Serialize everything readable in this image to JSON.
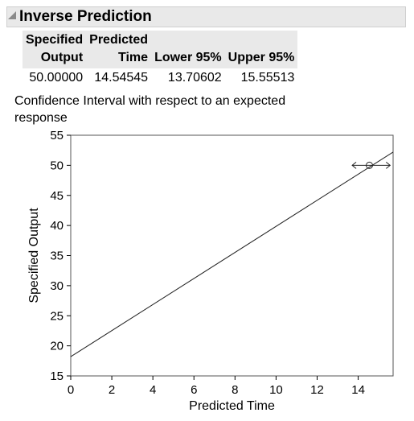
{
  "section": {
    "title": "Inverse Prediction"
  },
  "table": {
    "headers": [
      {
        "line1": "Specified",
        "line2": "Output"
      },
      {
        "line1": "Predicted",
        "line2": "Time"
      },
      {
        "line1": "",
        "line2": "Lower 95%"
      },
      {
        "line1": "",
        "line2": "Upper 95%"
      }
    ],
    "row": [
      "50.00000",
      "14.54545",
      "13.70602",
      "15.55513"
    ]
  },
  "caption": "Confidence Interval with respect to an expected response",
  "chart_data": {
    "type": "line",
    "xlabel": "Predicted Time",
    "ylabel": "Specified Output",
    "xlim": [
      0,
      15.7
    ],
    "ylim": [
      15,
      55
    ],
    "xticks": [
      0,
      2,
      4,
      6,
      8,
      10,
      12,
      14
    ],
    "yticks": [
      15,
      20,
      25,
      30,
      35,
      40,
      45,
      50,
      55
    ],
    "grid": false,
    "series": [
      {
        "x": [
          0,
          15.7
        ],
        "y": [
          18.2,
          52.2
        ]
      }
    ],
    "point": {
      "x": 14.54545,
      "y": 50
    },
    "interval": {
      "lower": 13.70602,
      "upper": 15.55513,
      "y": 50
    }
  }
}
